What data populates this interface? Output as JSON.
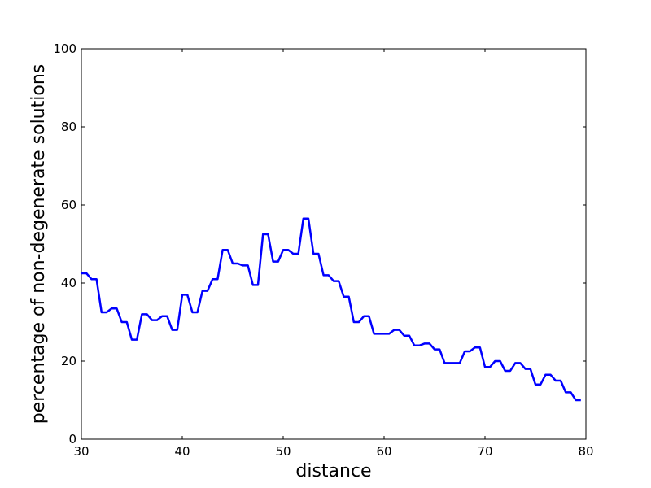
{
  "chart_data": {
    "type": "line",
    "title": "",
    "xlabel": "distance",
    "ylabel": "percentage of non-degenerate solutions",
    "xlim": [
      30,
      80
    ],
    "ylim": [
      0,
      100
    ],
    "xticks": [
      30,
      40,
      50,
      60,
      70,
      80
    ],
    "yticks": [
      0,
      20,
      40,
      60,
      80,
      100
    ],
    "grid": false,
    "line_color": "#0000ff",
    "series": [
      {
        "x": [
          30,
          30.5,
          31,
          31.5,
          32,
          32.5,
          33,
          33.5,
          34,
          34.5,
          35,
          35.5,
          36,
          36.5,
          37,
          37.5,
          38,
          38.5,
          39,
          39.5,
          40,
          40.5,
          41,
          41.5,
          42,
          42.5,
          43,
          43.5,
          44,
          44.5,
          45,
          45.5,
          46,
          46.5,
          47,
          47.5,
          48,
          48.5,
          49,
          49.5,
          50,
          50.5,
          51,
          51.5,
          52,
          52.5,
          53,
          53.5,
          54,
          54.5,
          55,
          55.5,
          56,
          56.5,
          57,
          57.5,
          58,
          58.5,
          59,
          59.5,
          60,
          60.5,
          61,
          61.5,
          62,
          62.5,
          63,
          63.5,
          64,
          64.5,
          65,
          65.5,
          66,
          66.5,
          67,
          67.5,
          68,
          68.5,
          69,
          69.5,
          70,
          70.5,
          71,
          71.5,
          72,
          72.5,
          73,
          73.5,
          74,
          74.5,
          75,
          75.5,
          76,
          76.5,
          77,
          77.5,
          78,
          78.5,
          79,
          79.5
        ],
        "y": [
          42.5,
          42.5,
          41,
          41,
          32.5,
          32.5,
          33.5,
          33.5,
          30,
          30,
          25.5,
          25.5,
          32,
          32,
          30.5,
          30.5,
          31.5,
          31.5,
          28,
          28,
          37,
          37,
          32.5,
          32.5,
          38,
          38,
          41,
          41,
          48.5,
          48.5,
          45,
          45,
          44.5,
          44.5,
          39.5,
          39.5,
          52.5,
          52.5,
          45.5,
          45.5,
          48.5,
          48.5,
          47.5,
          47.5,
          56.5,
          56.5,
          47.5,
          47.5,
          42,
          42,
          40.5,
          40.5,
          36.5,
          36.5,
          30,
          30,
          31.5,
          31.5,
          27,
          27,
          27,
          27,
          28,
          28,
          26.5,
          26.5,
          24,
          24,
          24.5,
          24.5,
          23,
          23,
          19.5,
          19.5,
          19.5,
          19.5,
          22.5,
          22.5,
          23.5,
          23.5,
          18.5,
          18.5,
          20,
          20,
          17.5,
          17.5,
          19.5,
          19.5,
          18,
          18,
          14,
          14,
          16.5,
          16.5,
          15,
          15,
          12,
          12,
          10,
          10
        ]
      }
    ]
  }
}
